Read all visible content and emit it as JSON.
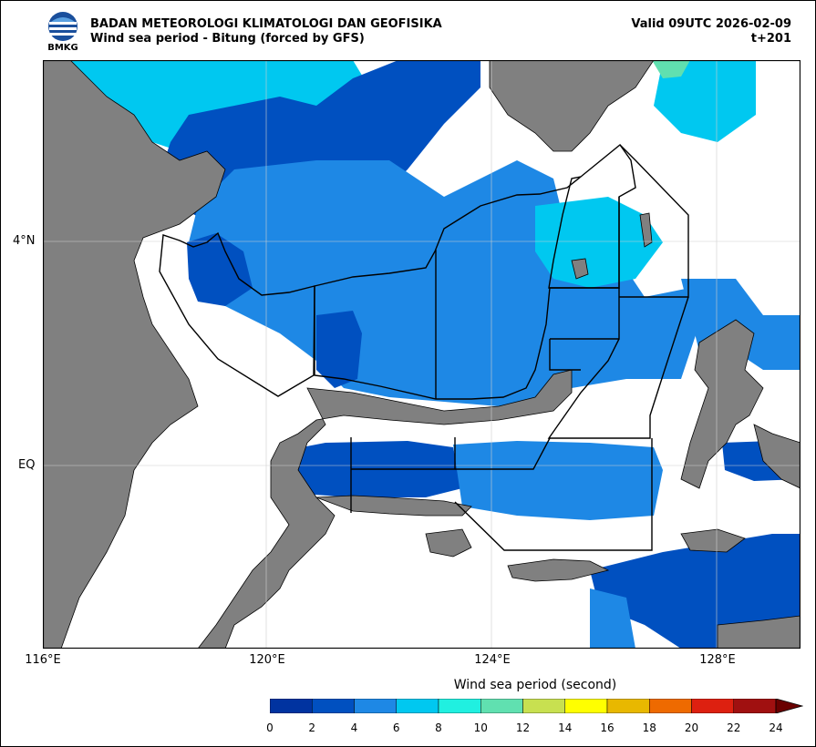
{
  "header": {
    "agency": "BADAN METEOROLOGI KLIMATOLOGI DAN GEOFISIKA",
    "subtitle": "Wind sea period - Bitung (forced by GFS)",
    "valid": "Valid 09UTC 2026-02-09",
    "step": "t+201",
    "logo_text": "BMKG"
  },
  "axes": {
    "lat_labels": [
      "4°N",
      "EQ"
    ],
    "lon_labels": [
      "116°E",
      "120°E",
      "124°E",
      "128°E"
    ]
  },
  "colorbar": {
    "title": "Wind sea period (second)",
    "ticks": [
      "0",
      "2",
      "4",
      "6",
      "8",
      "10",
      "12",
      "14",
      "16",
      "18",
      "20",
      "22",
      "24"
    ],
    "colors": [
      "#0033a0",
      "#0050c0",
      "#1e88e5",
      "#00c8f0",
      "#20f0e0",
      "#60e0b0",
      "#c8e050",
      "#ffff00",
      "#e8b800",
      "#ee6a00",
      "#dd2010",
      "#a01010"
    ],
    "extend_color": "#6a0000"
  },
  "palette": {
    "land": "#808080",
    "white": "#ffffff",
    "period_2_4": "#0050c0",
    "period_4_6": "#1e88e5",
    "period_6_8": "#00c8f0",
    "period_10_12": "#60e0b0"
  }
}
